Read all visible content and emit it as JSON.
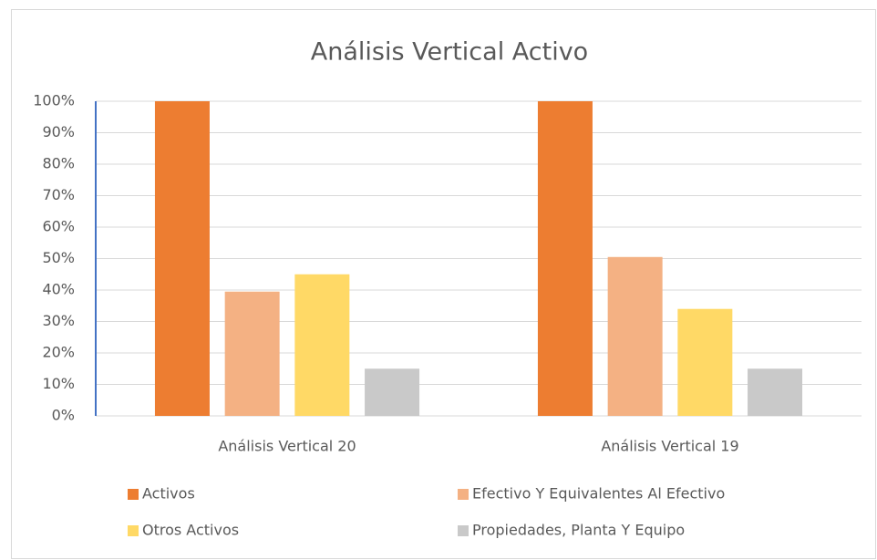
{
  "chart_data": {
    "type": "bar",
    "title": "Análisis Vertical Activo",
    "categories": [
      "Análisis Vertical 20",
      "Análisis Vertical 19"
    ],
    "series": [
      {
        "name": "Activos",
        "color": "#ed7d31",
        "values": [
          100,
          100
        ]
      },
      {
        "name": "Efectivo Y Equivalentes Al Efectivo",
        "color": "#f4b183",
        "values": [
          39.5,
          50.5
        ]
      },
      {
        "name": "Otros Activos",
        "color": "#ffd966",
        "values": [
          45,
          34
        ]
      },
      {
        "name": "Propiedades, Planta Y Equipo",
        "color": "#c9c9c9",
        "values": [
          15,
          15
        ]
      }
    ],
    "ylim": [
      0,
      100
    ],
    "yticks": [
      {
        "value": 0,
        "label": "0%"
      },
      {
        "value": 10,
        "label": "10%"
      },
      {
        "value": 20,
        "label": "20%"
      },
      {
        "value": 30,
        "label": "30%"
      },
      {
        "value": 40,
        "label": "40%"
      },
      {
        "value": 50,
        "label": "50%"
      },
      {
        "value": 60,
        "label": "60%"
      },
      {
        "value": 70,
        "label": "70%"
      },
      {
        "value": 80,
        "label": "80%"
      },
      {
        "value": 90,
        "label": "90%"
      },
      {
        "value": 100,
        "label": "100%"
      }
    ],
    "grid": true,
    "legend": "bottom"
  }
}
